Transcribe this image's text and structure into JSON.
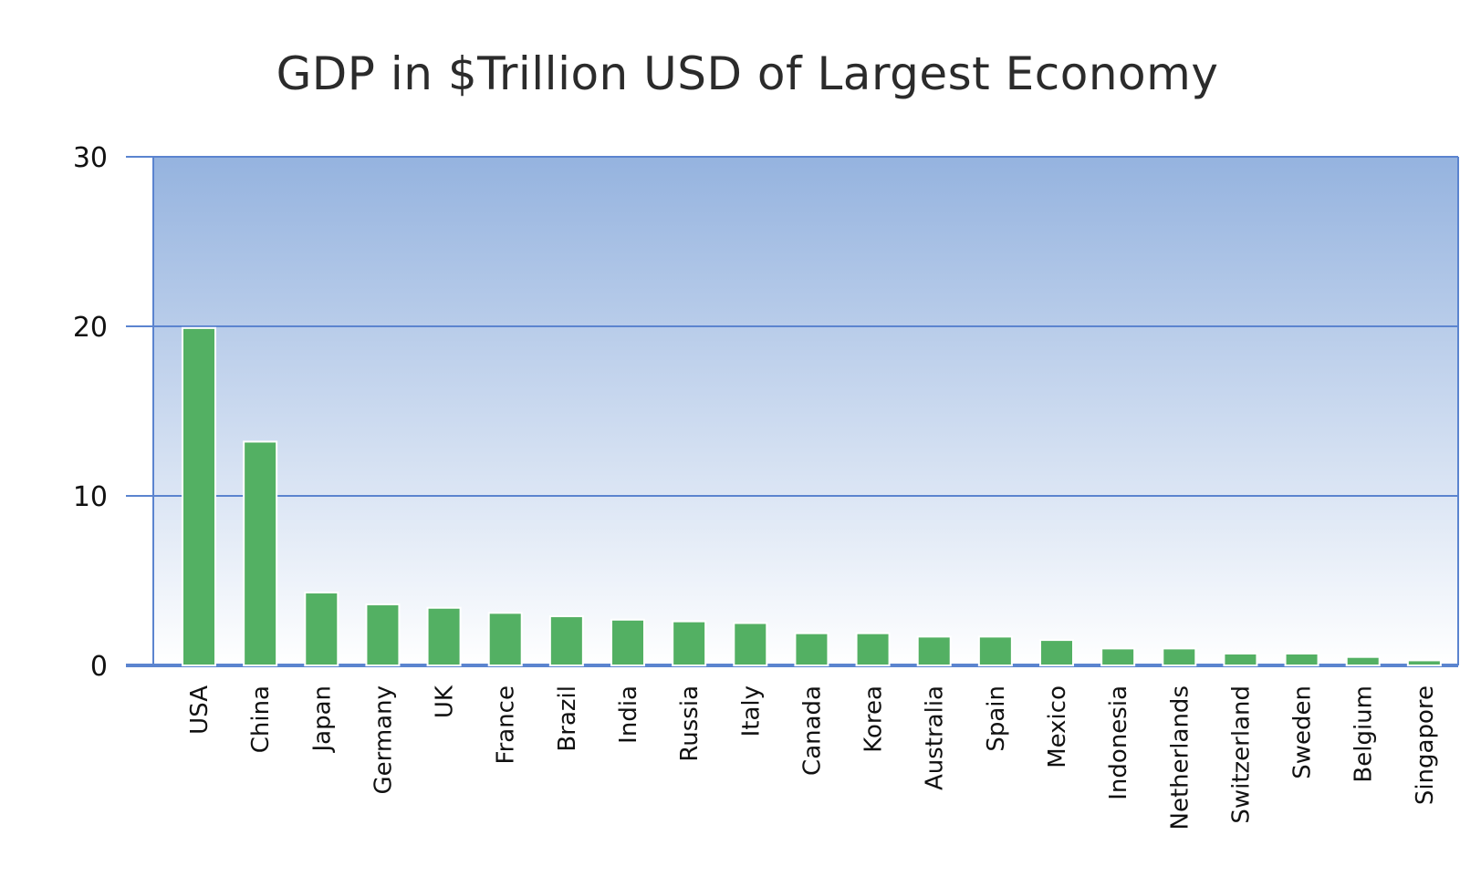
{
  "chart_data": {
    "type": "bar",
    "title": "GDP in $Trillion USD of Largest Economy",
    "xlabel": "",
    "ylabel": "",
    "ylim": [
      0,
      30
    ],
    "yticks": [
      0,
      10,
      20,
      30
    ],
    "grid": true,
    "legend": "none",
    "categories": [
      "USA",
      "China",
      "Japan",
      "Germany",
      "UK",
      "France",
      "Brazil",
      "India",
      "Russia",
      "Italy",
      "Canada",
      "Korea",
      "Australia",
      "Spain",
      "Mexico",
      "Indonesia",
      "Netherlands",
      "Switzerland",
      "Sweden",
      "Belgium",
      "Singapore"
    ],
    "values": [
      19.9,
      13.2,
      4.3,
      3.6,
      3.4,
      3.1,
      2.9,
      2.7,
      2.6,
      2.5,
      1.9,
      1.9,
      1.7,
      1.7,
      1.5,
      1.0,
      1.0,
      0.7,
      0.7,
      0.5,
      0.3
    ],
    "colors": {
      "bar": "#53b063",
      "bar_outline": "#ffffff",
      "axis": "#5b84cf",
      "plot_top": "#95b3df",
      "plot_bottom": "#ffffff"
    }
  }
}
